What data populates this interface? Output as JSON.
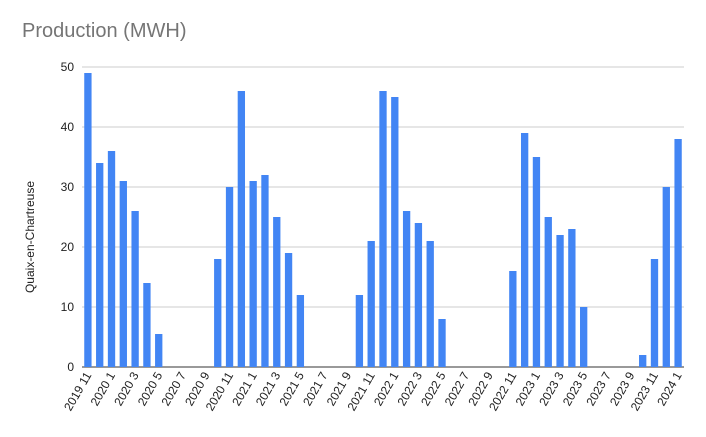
{
  "chart_data": {
    "type": "bar",
    "title": "Production (MWH)",
    "xlabel": "",
    "ylabel": "Quaix-en-Chartreuse",
    "ylim": [
      0,
      50
    ],
    "yticks": [
      0,
      10,
      20,
      30,
      40,
      50
    ],
    "grid": true,
    "bar_color": "#4285F4",
    "grid_color": "#cccccc",
    "categories": [
      "2019 11",
      "2019 12",
      "2020 1",
      "2020 2",
      "2020 3",
      "2020 4",
      "2020 5",
      "2020 6",
      "2020 7",
      "2020 8",
      "2020 9",
      "2020 10",
      "2020 11",
      "2020 12",
      "2021 1",
      "2021 2",
      "2021 3",
      "2021 4",
      "2021 5",
      "2021 6",
      "2021 7",
      "2021 8",
      "2021 9",
      "2021 10",
      "2021 11",
      "2021 12",
      "2022 1",
      "2022 2",
      "2022 3",
      "2022 4",
      "2022 5",
      "2022 6",
      "2022 7",
      "2022 8",
      "2022 9",
      "2022 10",
      "2022 11",
      "2022 12",
      "2023 1",
      "2023 2",
      "2023 3",
      "2023 4",
      "2023 5",
      "2023 6",
      "2023 7",
      "2023 8",
      "2023 9",
      "2023 10",
      "2023 11",
      "2023 12",
      "2024 1"
    ],
    "tick_labels": [
      "2019 11",
      "2020 1",
      "2020 3",
      "2020 5",
      "2020 7",
      "2020 9",
      "2020 11",
      "2021 1",
      "2021 3",
      "2021 5",
      "2021 7",
      "2021 9",
      "2021 11",
      "2022 1",
      "2022 3",
      "2022 5",
      "2022 7",
      "2022 9",
      "2022 11",
      "2023 1",
      "2023 3",
      "2023 5",
      "2023 7",
      "2023 9",
      "2023 11",
      "2024 1"
    ],
    "values": [
      49,
      34,
      36,
      31,
      26,
      14,
      5.5,
      0,
      0,
      0,
      0,
      18,
      30,
      46,
      31,
      32,
      25,
      19,
      12,
      0,
      0,
      0,
      0,
      12,
      21,
      46,
      45,
      26,
      24,
      21,
      8,
      0,
      0,
      0,
      0,
      0,
      16,
      39,
      35,
      25,
      22,
      23,
      10,
      0,
      0,
      0,
      0,
      2,
      18,
      30,
      38
    ]
  }
}
